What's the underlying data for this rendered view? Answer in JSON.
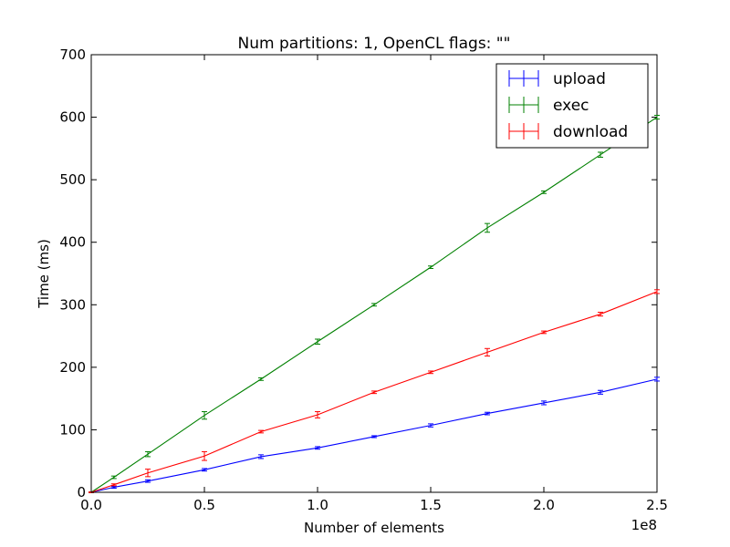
{
  "chart_data": {
    "type": "line",
    "title": "Num partitions: 1, OpenCL flags: \"\"",
    "xlabel": "Number of elements",
    "ylabel": "Time (ms)",
    "x_offset_label": "1e8",
    "xlim": [
      0,
      250000000
    ],
    "ylim": [
      0,
      700
    ],
    "xticks": [
      0,
      50000000,
      100000000,
      150000000,
      200000000,
      250000000
    ],
    "xtick_labels": [
      "0.0",
      "0.5",
      "1.0",
      "1.5",
      "2.0",
      "2.5"
    ],
    "yticks": [
      0,
      100,
      200,
      300,
      400,
      500,
      600,
      700
    ],
    "ytick_labels": [
      "0",
      "100",
      "200",
      "300",
      "400",
      "500",
      "600",
      "700"
    ],
    "grid": false,
    "legend_position": "top-right",
    "series": [
      {
        "name": "upload",
        "color": "#0000ff",
        "x": [
          0,
          10000000,
          25000000,
          50000000,
          75000000,
          100000000,
          125000000,
          150000000,
          175000000,
          200000000,
          225000000,
          250000000
        ],
        "y": [
          0,
          8,
          18,
          36,
          57,
          71,
          89,
          107,
          126,
          143,
          160,
          181
        ],
        "err": [
          0.5,
          1.5,
          2,
          2,
          3,
          2,
          1.5,
          2.5,
          2,
          3,
          3,
          3
        ]
      },
      {
        "name": "exec",
        "color": "#008000",
        "x": [
          0,
          10000000,
          25000000,
          50000000,
          75000000,
          100000000,
          125000000,
          150000000,
          175000000,
          200000000,
          225000000,
          250000000
        ],
        "y": [
          0,
          24,
          61,
          123,
          181,
          241,
          300,
          360,
          423,
          480,
          540,
          600
        ],
        "err": [
          0.5,
          2,
          4,
          6,
          2,
          4,
          2,
          2,
          7,
          2,
          4,
          3
        ]
      },
      {
        "name": "download",
        "color": "#ff0000",
        "x": [
          0,
          10000000,
          25000000,
          50000000,
          75000000,
          100000000,
          125000000,
          150000000,
          175000000,
          200000000,
          225000000,
          250000000
        ],
        "y": [
          0,
          12,
          31,
          58,
          97,
          124,
          160,
          192,
          224,
          256,
          285,
          321
        ],
        "err": [
          0.5,
          1.5,
          6,
          7,
          2,
          5,
          2,
          2,
          6,
          2,
          3,
          3
        ]
      }
    ]
  }
}
